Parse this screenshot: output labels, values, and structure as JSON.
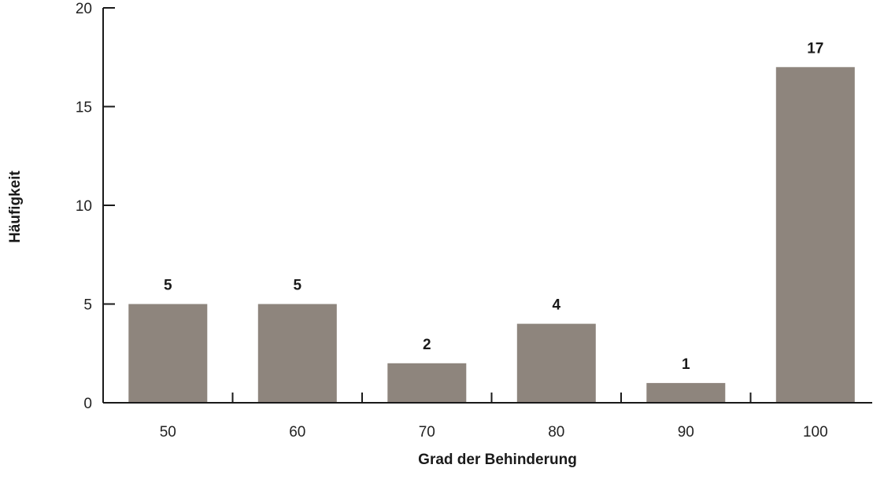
{
  "chart_data": {
    "type": "bar",
    "title": "",
    "xlabel": "Grad der Behinderung",
    "ylabel": "Häufigkeit",
    "categories": [
      "50",
      "60",
      "70",
      "80",
      "90",
      "100"
    ],
    "values": [
      5,
      5,
      2,
      4,
      1,
      17
    ],
    "data_labels": [
      "5",
      "5",
      "2",
      "4",
      "1",
      "17"
    ],
    "yticks": [
      0,
      5,
      10,
      15,
      20
    ],
    "ytick_labels": [
      "0",
      "5",
      "10",
      "15",
      "20"
    ],
    "ylim": [
      0,
      20
    ],
    "grid": false,
    "legend": "none",
    "bar_color": "#8e857d",
    "axis_color": "#1a1a1a"
  }
}
